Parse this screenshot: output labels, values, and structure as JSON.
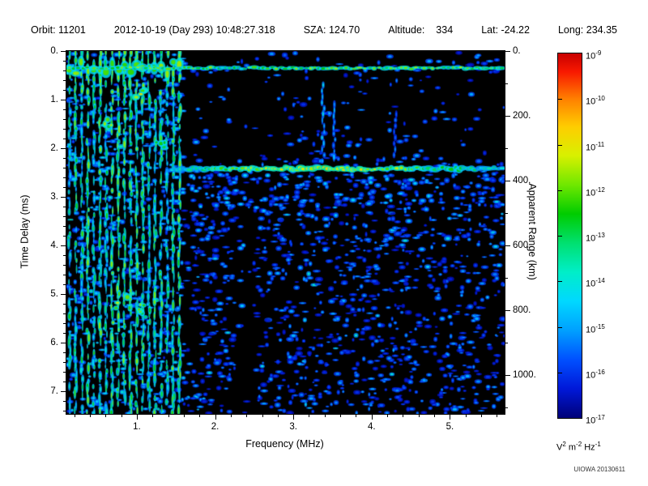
{
  "header": {
    "orbit": "Orbit: 11201",
    "datetime": "2012-10-19 (Day 293) 10:48:27.318",
    "sza": "SZA: 124.70",
    "altitude": "Altitude:    334",
    "lat": "Lat: -24.22",
    "long": "Long: 234.35"
  },
  "chart_data": {
    "type": "heatmap",
    "xlabel": "Frequency (MHz)",
    "ylabel_left": "Time Delay (ms)",
    "ylabel_right": "Apparent Range (km)",
    "x_range": [
      0.1,
      5.7
    ],
    "y_range": [
      0,
      7.46
    ],
    "right_range": [
      0,
      1119
    ],
    "x_ticks": {
      "values": [
        1,
        2,
        3,
        4,
        5
      ],
      "labels": [
        "1.",
        "2.",
        "3.",
        "4.",
        "5."
      ],
      "minor_step": 0.2
    },
    "y_ticks": {
      "values": [
        0,
        1,
        2,
        3,
        4,
        5,
        6,
        7
      ],
      "labels": [
        "0.",
        "1.",
        "2.",
        "3.",
        "4.",
        "5.",
        "6.",
        "7."
      ],
      "minor_step": 0.2
    },
    "right_ticks": {
      "values": [
        0,
        200,
        400,
        600,
        800,
        1000
      ],
      "labels": [
        "0.",
        "200.",
        "400.",
        "600.",
        "800.",
        "1000."
      ],
      "minor_step": 100
    },
    "colorbar": {
      "scale": "log",
      "tick_base": "10",
      "tick_exponents": [
        "-9",
        "-10",
        "-11",
        "-12",
        "-13",
        "-14",
        "-15",
        "-16",
        "-17"
      ],
      "units": "V² m⁻² Hz⁻¹",
      "units_parts": [
        {
          "text": "V"
        },
        {
          "text": "2",
          "sup": true
        },
        {
          "text": " m"
        },
        {
          "text": "-2",
          "sup": true
        },
        {
          "text": " Hz"
        },
        {
          "text": "-1",
          "sup": true
        }
      ],
      "gradient": [
        {
          "pos": 0.0,
          "color": "#c80000"
        },
        {
          "pos": 0.05,
          "color": "#f81800"
        },
        {
          "pos": 0.125,
          "color": "#ff8000"
        },
        {
          "pos": 0.2,
          "color": "#ffcc00"
        },
        {
          "pos": 0.28,
          "color": "#d8f000"
        },
        {
          "pos": 0.36,
          "color": "#70e800"
        },
        {
          "pos": 0.44,
          "color": "#00cc00"
        },
        {
          "pos": 0.52,
          "color": "#00e070"
        },
        {
          "pos": 0.6,
          "color": "#00eec8"
        },
        {
          "pos": 0.68,
          "color": "#00d8ff"
        },
        {
          "pos": 0.76,
          "color": "#00a0ff"
        },
        {
          "pos": 0.84,
          "color": "#0050ff"
        },
        {
          "pos": 0.92,
          "color": "#0018d8"
        },
        {
          "pos": 1.0,
          "color": "#000078"
        }
      ]
    },
    "features": {
      "seed": 20130611,
      "noise_blob_count": 3400,
      "harmonics": {
        "f_start": 0.14,
        "f_step": 0.078,
        "f_end": 1.58
      },
      "top_echo_line": {
        "delay_ms": 0.35
      },
      "surface_echo": {
        "delay_ms": 2.42,
        "f_start": 1.45,
        "peak_f": 3.3
      },
      "dark_column": {
        "f0": 2.25,
        "f1": 2.52
      },
      "streaks": [
        {
          "f": 3.38,
          "d0": 0.7,
          "d1": 2.3,
          "i": 0.32
        },
        {
          "f": 3.52,
          "d0": 1.1,
          "d1": 2.25,
          "i": 0.26
        },
        {
          "f": 4.3,
          "d0": 1.3,
          "d1": 2.2,
          "i": 0.2
        }
      ],
      "bright_patches": [
        {
          "f": 0.85,
          "d": 5.15,
          "rf": 0.12,
          "rd": 0.18,
          "i": 0.66
        },
        {
          "f": 1.02,
          "d": 5.3,
          "rf": 0.07,
          "rd": 0.12,
          "i": 0.6
        },
        {
          "f": 1.05,
          "d": 0.95,
          "rf": 0.08,
          "rd": 0.15,
          "i": 0.68
        },
        {
          "f": 0.62,
          "d": 1.4,
          "rf": 0.06,
          "rd": 0.2,
          "i": 0.62
        },
        {
          "f": 1.3,
          "d": 1.9,
          "rf": 0.07,
          "rd": 0.12,
          "i": 0.6
        }
      ]
    }
  },
  "footer": {
    "credit": "UIOWA 20130611"
  }
}
